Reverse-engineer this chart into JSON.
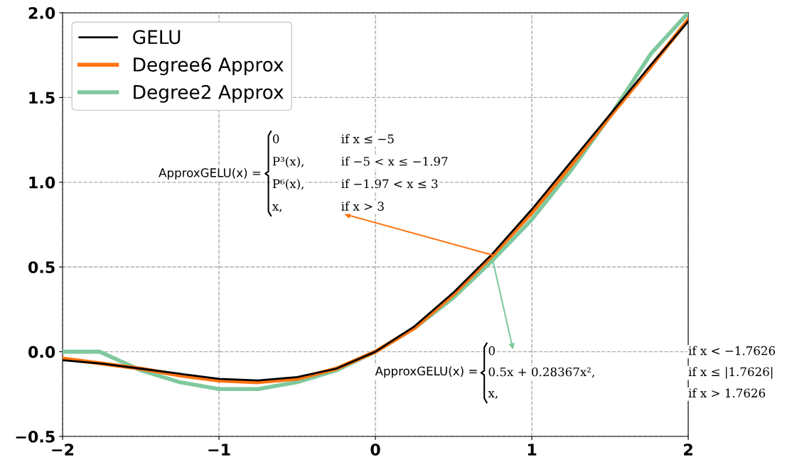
{
  "chart_data": {
    "type": "line",
    "xlim": [
      -2,
      2
    ],
    "ylim": [
      -0.5,
      2.0
    ],
    "xticks": [
      {
        "value": -2,
        "label": "−2"
      },
      {
        "value": -1,
        "label": "−1"
      },
      0,
      1,
      2
    ],
    "yticks": [
      {
        "value": -0.5,
        "label": "−0.5"
      },
      {
        "value": 0,
        "label": "0.0"
      },
      0.5,
      {
        "value": 1,
        "label": "1.0"
      },
      1.5,
      {
        "value": 2,
        "label": "2.0"
      }
    ],
    "grid": true,
    "legend": "top left",
    "line_style": "solid",
    "series": [
      {
        "name": "GELU",
        "color": "#000000",
        "x": [
          -2,
          -1.75,
          -1.5,
          -1.25,
          -1,
          -0.75,
          -0.5,
          -0.25,
          0,
          0.25,
          0.5,
          0.75,
          1,
          1.25,
          1.5,
          1.75,
          2
        ],
        "values": [
          -0.05,
          -0.07,
          -0.1,
          -0.13,
          -0.16,
          -0.17,
          -0.15,
          -0.1,
          0,
          0.15,
          0.35,
          0.58,
          0.84,
          1.12,
          1.4,
          1.68,
          1.95
        ]
      },
      {
        "name": "Degree6 Approx",
        "color": "#ff7410",
        "x": [
          -2,
          -1.75,
          -1.5,
          -1.25,
          -1,
          -0.75,
          -0.5,
          -0.25,
          0,
          0.25,
          0.5,
          0.75,
          1,
          1.25,
          1.5,
          1.75,
          2
        ],
        "values": [
          -0.04,
          -0.07,
          -0.1,
          -0.14,
          -0.17,
          -0.18,
          -0.16,
          -0.1,
          0,
          0.14,
          0.34,
          0.57,
          0.82,
          1.1,
          1.39,
          1.67,
          1.96
        ]
      },
      {
        "name": "Degree2 Approx",
        "color": "#7fc99e",
        "x": [
          -2,
          -1.7626,
          -1.5,
          -1.25,
          -1,
          -0.75,
          -0.5,
          -0.25,
          0,
          0.25,
          0.5,
          0.75,
          1,
          1.25,
          1.5,
          1.7626,
          2
        ],
        "values": [
          0,
          0,
          -0.11,
          -0.18,
          -0.22,
          -0.22,
          -0.18,
          -0.11,
          0,
          0.14,
          0.32,
          0.54,
          0.78,
          1.07,
          1.39,
          1.76,
          2.0
        ]
      }
    ],
    "annotations": [
      "ApproxGELU(x) =",
      "0",
      "if x ≤ −5",
      "P³(x),",
      "if −5 < x ≤ −1.97",
      "P⁶(x),",
      "if −1.97 < x ≤ 3",
      "x,",
      "if x > 3",
      "ApproxGELU(x) =",
      "0",
      "if x < −1.7626",
      "0.5x + 0.28367x²,",
      "if x ≤ |1.7626|",
      "x,",
      "if x > 1.7626"
    ]
  }
}
